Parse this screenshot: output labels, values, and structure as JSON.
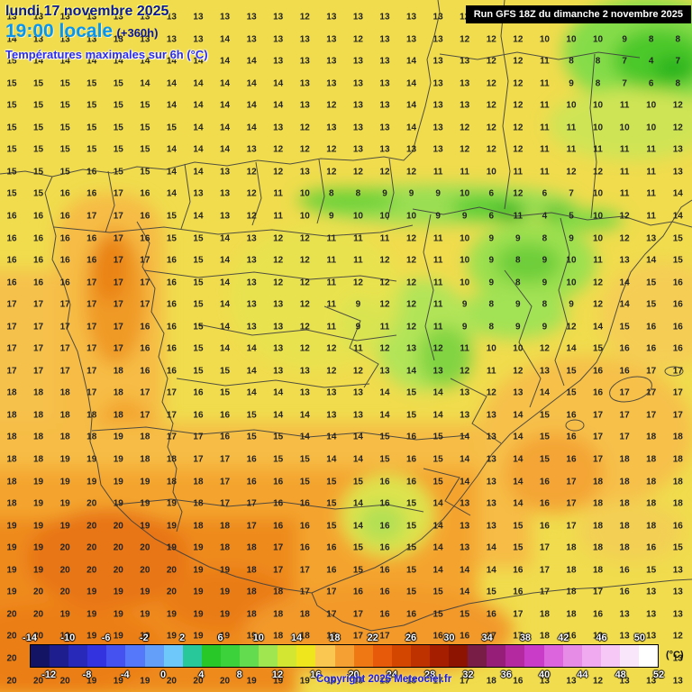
{
  "header": {
    "date_line": "lundi 17 novembre 2025",
    "time_line": "19:00 locale",
    "offset": "(+360h)",
    "subtitle": "Températures maximales sur 6h (°C)",
    "run_info": "Run GFS 18Z du dimanche 2 novembre 2025"
  },
  "footer": {
    "copyright": "Copyright 2025 Meteociel.fr",
    "unit_label": "(°C)"
  },
  "colorbar": {
    "min": -14,
    "max": 52,
    "step": 2,
    "top_ticks": [
      -14,
      -10,
      -6,
      -2,
      2,
      6,
      10,
      14,
      18,
      22,
      26,
      30,
      34,
      38,
      42,
      46,
      50
    ],
    "bottom_ticks": [
      -12,
      -8,
      -4,
      0,
      4,
      8,
      12,
      16,
      20,
      24,
      28,
      32,
      36,
      40,
      44,
      48,
      52
    ],
    "colors": [
      "#141464",
      "#1e1e8f",
      "#2828b9",
      "#3333e0",
      "#4652f0",
      "#5578fa",
      "#64a0fa",
      "#6ec8fa",
      "#28c89b",
      "#28c828",
      "#3cd23c",
      "#64dc50",
      "#a0e650",
      "#d2e632",
      "#f0e61e",
      "#fac850",
      "#f5a032",
      "#f07814",
      "#e65a0a",
      "#d24600",
      "#be3200",
      "#a51e00",
      "#8c1400",
      "#781e46",
      "#961e78",
      "#b428a0",
      "#c83cc8",
      "#dc64dc",
      "#e68ce6",
      "#f0aaf0",
      "#f5c8f5",
      "#fae6fa",
      "#ffffff"
    ]
  },
  "map": {
    "grid": [
      [
        13,
        13,
        13,
        13,
        13,
        13,
        13,
        13,
        13,
        13,
        13,
        12,
        13,
        13,
        13,
        13,
        13,
        12,
        12,
        12,
        11,
        10,
        10,
        12,
        8,
        8
      ],
      [
        14,
        13,
        13,
        13,
        13,
        13,
        13,
        13,
        14,
        13,
        13,
        13,
        13,
        12,
        13,
        13,
        13,
        12,
        12,
        12,
        10,
        10,
        10,
        9,
        8,
        8
      ],
      [
        15,
        14,
        14,
        14,
        14,
        14,
        14,
        14,
        14,
        14,
        13,
        13,
        13,
        13,
        13,
        14,
        13,
        13,
        12,
        12,
        11,
        8,
        8,
        7,
        4,
        7
      ],
      [
        15,
        15,
        15,
        15,
        15,
        14,
        14,
        14,
        14,
        14,
        14,
        13,
        13,
        13,
        13,
        14,
        13,
        13,
        12,
        12,
        11,
        9,
        8,
        7,
        6,
        8
      ],
      [
        15,
        15,
        15,
        15,
        15,
        15,
        14,
        14,
        14,
        14,
        14,
        13,
        12,
        13,
        13,
        14,
        13,
        13,
        12,
        12,
        11,
        10,
        10,
        11,
        10,
        12
      ],
      [
        15,
        15,
        15,
        15,
        15,
        15,
        15,
        14,
        14,
        14,
        13,
        12,
        13,
        13,
        13,
        14,
        13,
        12,
        12,
        12,
        11,
        11,
        10,
        10,
        10,
        12
      ],
      [
        15,
        15,
        15,
        15,
        15,
        15,
        14,
        14,
        14,
        13,
        12,
        12,
        12,
        13,
        13,
        13,
        13,
        12,
        12,
        12,
        11,
        11,
        11,
        11,
        11,
        13
      ],
      [
        15,
        15,
        15,
        16,
        15,
        15,
        14,
        14,
        13,
        12,
        12,
        13,
        12,
        12,
        12,
        12,
        11,
        11,
        10,
        11,
        11,
        12,
        12,
        11,
        11,
        13
      ],
      [
        15,
        15,
        16,
        16,
        17,
        16,
        14,
        13,
        13,
        12,
        11,
        10,
        8,
        8,
        9,
        9,
        9,
        10,
        6,
        12,
        6,
        7,
        10,
        11,
        11,
        14
      ],
      [
        16,
        16,
        16,
        17,
        17,
        16,
        15,
        14,
        13,
        12,
        11,
        10,
        9,
        10,
        10,
        10,
        9,
        9,
        6,
        11,
        4,
        5,
        10,
        12,
        11,
        14
      ],
      [
        16,
        16,
        16,
        16,
        17,
        16,
        15,
        15,
        14,
        13,
        12,
        12,
        11,
        11,
        11,
        12,
        11,
        10,
        9,
        9,
        8,
        9,
        10,
        12,
        13,
        15
      ],
      [
        16,
        16,
        16,
        16,
        17,
        17,
        16,
        15,
        14,
        13,
        12,
        12,
        11,
        11,
        12,
        12,
        11,
        10,
        9,
        8,
        9,
        10,
        11,
        13,
        14,
        15
      ],
      [
        16,
        16,
        16,
        17,
        17,
        17,
        16,
        15,
        14,
        13,
        12,
        12,
        11,
        12,
        12,
        12,
        11,
        10,
        9,
        8,
        9,
        10,
        12,
        14,
        15,
        16
      ],
      [
        17,
        17,
        17,
        17,
        17,
        17,
        16,
        15,
        14,
        13,
        13,
        12,
        11,
        9,
        12,
        12,
        11,
        9,
        8,
        9,
        8,
        9,
        12,
        14,
        15,
        16
      ],
      [
        17,
        17,
        17,
        17,
        17,
        16,
        16,
        15,
        14,
        13,
        13,
        12,
        11,
        9,
        11,
        12,
        11,
        9,
        8,
        9,
        9,
        12,
        14,
        15,
        16,
        16
      ],
      [
        17,
        17,
        17,
        17,
        17,
        16,
        16,
        15,
        14,
        14,
        13,
        12,
        12,
        11,
        12,
        13,
        12,
        11,
        10,
        10,
        12,
        14,
        15,
        16,
        16,
        16
      ],
      [
        17,
        17,
        17,
        17,
        18,
        16,
        16,
        15,
        15,
        14,
        13,
        13,
        12,
        12,
        13,
        14,
        13,
        12,
        11,
        12,
        13,
        15,
        16,
        16,
        17,
        17
      ],
      [
        18,
        18,
        18,
        17,
        18,
        17,
        17,
        16,
        15,
        14,
        14,
        13,
        13,
        13,
        14,
        15,
        14,
        13,
        12,
        13,
        14,
        15,
        16,
        17,
        17,
        17
      ],
      [
        18,
        18,
        18,
        18,
        18,
        17,
        17,
        16,
        16,
        15,
        14,
        14,
        13,
        13,
        14,
        15,
        14,
        13,
        13,
        14,
        15,
        16,
        17,
        17,
        17,
        17
      ],
      [
        18,
        18,
        18,
        18,
        19,
        18,
        17,
        17,
        16,
        15,
        15,
        14,
        14,
        14,
        15,
        16,
        15,
        14,
        13,
        14,
        15,
        16,
        17,
        17,
        18,
        18
      ],
      [
        18,
        18,
        19,
        19,
        19,
        18,
        18,
        17,
        17,
        16,
        15,
        15,
        14,
        14,
        15,
        16,
        15,
        14,
        13,
        14,
        15,
        16,
        17,
        18,
        18,
        18
      ],
      [
        18,
        19,
        19,
        19,
        19,
        19,
        18,
        18,
        17,
        16,
        16,
        15,
        15,
        15,
        16,
        16,
        15,
        14,
        13,
        14,
        16,
        17,
        18,
        18,
        18,
        18
      ],
      [
        18,
        19,
        19,
        20,
        19,
        19,
        19,
        18,
        17,
        17,
        16,
        16,
        15,
        14,
        16,
        15,
        14,
        13,
        13,
        14,
        16,
        17,
        18,
        18,
        18,
        18
      ],
      [
        19,
        19,
        19,
        20,
        20,
        19,
        19,
        18,
        18,
        17,
        16,
        16,
        15,
        14,
        16,
        15,
        14,
        13,
        13,
        15,
        16,
        17,
        18,
        18,
        18,
        16
      ],
      [
        19,
        19,
        20,
        20,
        20,
        20,
        19,
        19,
        18,
        18,
        17,
        16,
        16,
        15,
        16,
        15,
        14,
        13,
        14,
        15,
        17,
        18,
        18,
        18,
        16,
        15
      ],
      [
        19,
        19,
        20,
        20,
        20,
        20,
        20,
        19,
        19,
        18,
        17,
        17,
        16,
        15,
        16,
        15,
        14,
        14,
        14,
        16,
        17,
        18,
        18,
        16,
        15,
        13
      ],
      [
        19,
        20,
        20,
        19,
        19,
        19,
        20,
        19,
        19,
        18,
        18,
        17,
        17,
        16,
        16,
        15,
        15,
        14,
        15,
        16,
        17,
        18,
        17,
        16,
        13,
        13
      ],
      [
        20,
        20,
        19,
        19,
        19,
        19,
        19,
        19,
        19,
        18,
        18,
        18,
        17,
        17,
        16,
        16,
        15,
        15,
        16,
        17,
        18,
        18,
        16,
        13,
        13,
        13
      ],
      [
        20,
        20,
        19,
        19,
        19,
        19,
        19,
        19,
        19,
        19,
        18,
        18,
        18,
        17,
        17,
        16,
        16,
        16,
        17,
        17,
        18,
        16,
        13,
        13,
        13,
        12
      ],
      [
        20,
        20,
        19,
        19,
        19,
        19,
        19,
        20,
        19,
        19,
        19,
        18,
        18,
        18,
        17,
        17,
        17,
        17,
        17,
        18,
        16,
        13,
        13,
        12,
        13,
        13
      ],
      [
        20,
        20,
        20,
        19,
        19,
        19,
        20,
        20,
        20,
        19,
        19,
        19,
        19,
        18,
        18,
        18,
        17,
        17,
        18,
        16,
        13,
        13,
        12,
        13,
        13,
        13
      ]
    ]
  }
}
